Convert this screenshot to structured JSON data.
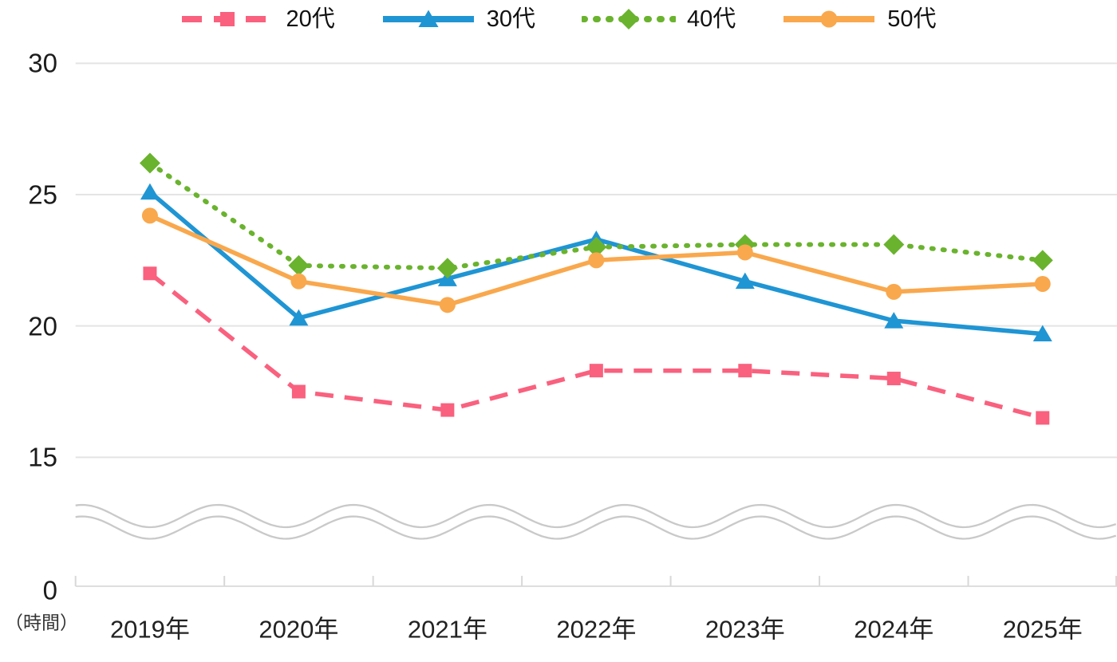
{
  "chart_data": {
    "type": "line",
    "x": [
      "2019年",
      "2020年",
      "2021年",
      "2022年",
      "2023年",
      "2024年",
      "2025年"
    ],
    "y_ticks": [
      30,
      25,
      20,
      15,
      0
    ],
    "unit_label": "（時間）",
    "ylim_visible": [
      15,
      30
    ],
    "y_axis_break": true,
    "grid": true,
    "legend_position": "top",
    "series": [
      {
        "key": "20s",
        "name": "20代",
        "color": "#f9617e",
        "line": "dashed",
        "marker": "square",
        "values": [
          22.0,
          17.5,
          16.8,
          18.3,
          18.3,
          18.0,
          16.5
        ]
      },
      {
        "key": "30s",
        "name": "30代",
        "color": "#1f95d4",
        "line": "solid",
        "marker": "triangle",
        "values": [
          25.1,
          20.3,
          21.8,
          23.3,
          21.7,
          20.2,
          19.7
        ]
      },
      {
        "key": "40s",
        "name": "40代",
        "color": "#6ab32e",
        "line": "dotted",
        "marker": "diamond",
        "values": [
          26.2,
          22.3,
          22.2,
          23.0,
          23.1,
          23.1,
          22.5
        ]
      },
      {
        "key": "50s",
        "name": "50代",
        "color": "#f9a84d",
        "line": "solid",
        "marker": "circle",
        "values": [
          24.2,
          21.7,
          20.8,
          22.5,
          22.8,
          21.3,
          21.6
        ]
      }
    ],
    "colors": {
      "gridline": "#e4e4e4",
      "axis_line": "#dedede",
      "tick_mark": "#d8d8d8",
      "break_wave": "#c9c9c9",
      "tick_text": "#1c1c1c"
    }
  }
}
